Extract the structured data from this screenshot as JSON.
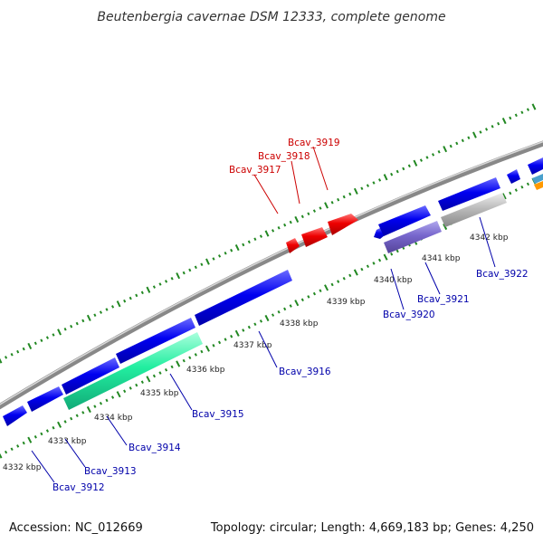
{
  "title": "Beutenbergia cavernae DSM 12333, complete genome",
  "footer": {
    "accession": "Accession: NC_012669",
    "topology": "Topology: circular; Length: 4,669,183 bp; Genes: 4,250"
  },
  "colors": {
    "forward_gene": "#0000ee",
    "highlight_gene": "#ee0000",
    "reverse_gene_green": "#22eea0",
    "reverse_gene_lavender": "#7766cc",
    "reverse_gene_gray": "#bbbbbb",
    "backbone": "#888888",
    "tick": "#228822",
    "red_label": "#cc0000",
    "blue_label": "#0000aa"
  },
  "kbp_labels": [
    "4332 kbp",
    "4333 kbp",
    "4334 kbp",
    "4335 kbp",
    "4336 kbp",
    "4337 kbp",
    "4338 kbp",
    "4339 kbp",
    "4340 kbp",
    "4341 kbp",
    "4342 kbp"
  ],
  "red_labels": [
    "Bcav_3917",
    "Bcav_3918",
    "Bcav_3919"
  ],
  "blue_labels": [
    "Bcav_3912",
    "Bcav_3913",
    "Bcav_3914",
    "Bcav_3915",
    "Bcav_3916",
    "Bcav_3920",
    "Bcav_3921",
    "Bcav_3922"
  ]
}
